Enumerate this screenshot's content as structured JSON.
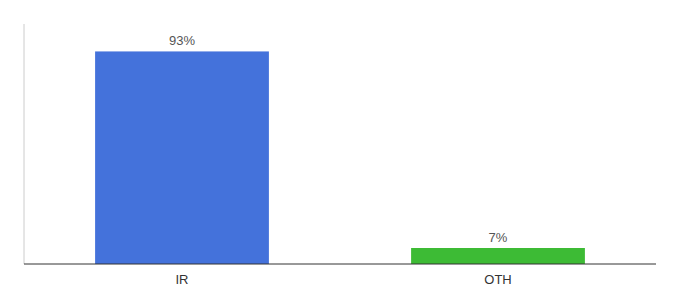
{
  "chart_data": {
    "type": "bar",
    "categories": [
      "IR",
      "OTH"
    ],
    "values": [
      93,
      7
    ],
    "value_labels": [
      "93%",
      "7%"
    ],
    "data_labels": true,
    "colors": [
      "#4472db",
      "#3dbb35"
    ],
    "ylim": [
      0,
      105
    ],
    "tick_labels": "x",
    "grid": false
  }
}
